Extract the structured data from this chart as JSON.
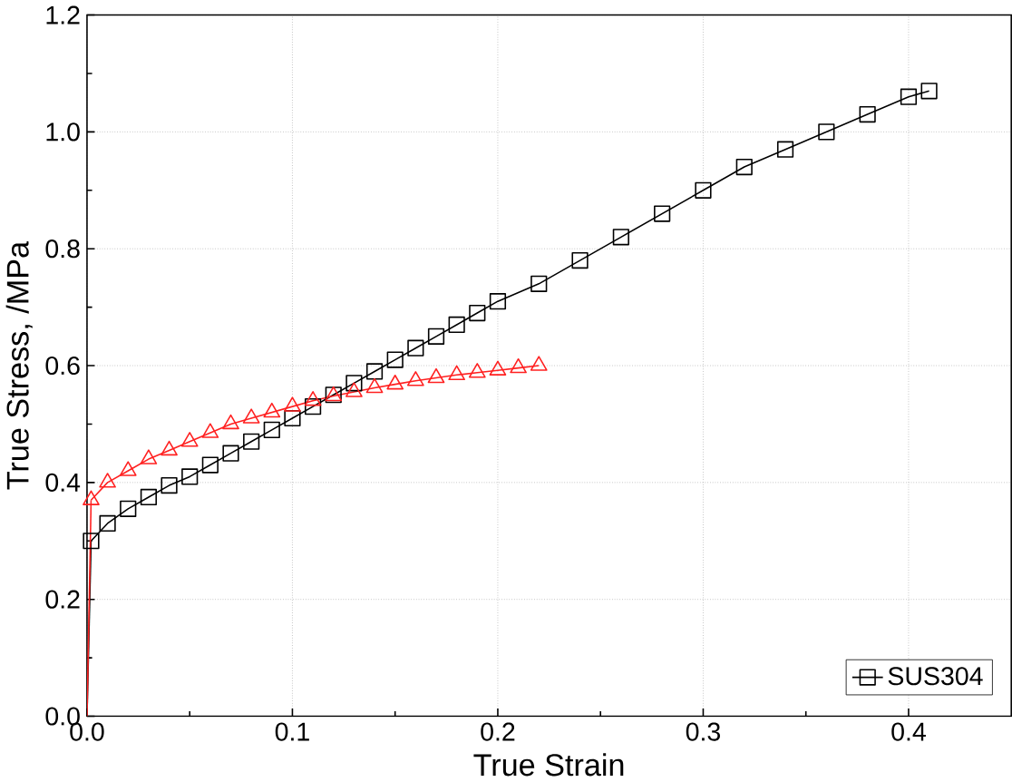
{
  "chart_data": {
    "type": "line",
    "xlabel": "True Strain",
    "ylabel": "True Stress, /MPa",
    "xlim": [
      0,
      0.45
    ],
    "ylim": [
      0,
      1.2
    ],
    "xticks": [
      {
        "value": 0,
        "label": "0.0"
      },
      0.1,
      0.2,
      0.3,
      0.4
    ],
    "yticks": [
      {
        "value": 0,
        "label": "0.0"
      },
      0.2,
      0.4,
      0.6,
      0.8,
      {
        "value": 1.0,
        "label": "1.0"
      },
      1.2
    ],
    "grid": true,
    "legend": "bottom right",
    "series": [
      {
        "name": "SUS304",
        "color": "#000000",
        "marker": "square",
        "x": [
          0.002,
          0.01,
          0.02,
          0.03,
          0.04,
          0.05,
          0.06,
          0.07,
          0.08,
          0.09,
          0.1,
          0.11,
          0.12,
          0.13,
          0.14,
          0.15,
          0.16,
          0.17,
          0.18,
          0.19,
          0.2,
          0.22,
          0.24,
          0.26,
          0.28,
          0.3,
          0.32,
          0.34,
          0.36,
          0.38,
          0.4,
          0.41
        ],
        "values": [
          0.3,
          0.33,
          0.355,
          0.375,
          0.395,
          0.41,
          0.43,
          0.45,
          0.47,
          0.49,
          0.51,
          0.53,
          0.55,
          0.57,
          0.59,
          0.61,
          0.63,
          0.65,
          0.67,
          0.69,
          0.71,
          0.74,
          0.78,
          0.82,
          0.86,
          0.9,
          0.94,
          0.97,
          1.0,
          1.03,
          1.06,
          1.07
        ]
      },
      {
        "color": "#ff2020",
        "marker": "triangle",
        "x": [
          0.002,
          0.01,
          0.02,
          0.03,
          0.04,
          0.05,
          0.06,
          0.07,
          0.08,
          0.09,
          0.1,
          0.11,
          0.12,
          0.13,
          0.14,
          0.15,
          0.16,
          0.17,
          0.18,
          0.19,
          0.2,
          0.21,
          0.22
        ],
        "values": [
          0.37,
          0.4,
          0.42,
          0.44,
          0.455,
          0.47,
          0.485,
          0.5,
          0.51,
          0.52,
          0.53,
          0.54,
          0.548,
          0.555,
          0.562,
          0.568,
          0.574,
          0.579,
          0.584,
          0.588,
          0.592,
          0.596,
          0.6
        ]
      },
      {
        "color": "#000000",
        "marker": "none",
        "x": [
          0,
          0.002
        ],
        "values": [
          0,
          0.3
        ]
      },
      {
        "color": "#ff2020",
        "marker": "none",
        "x": [
          0,
          0.002
        ],
        "values": [
          0,
          0.37
        ]
      }
    ]
  }
}
